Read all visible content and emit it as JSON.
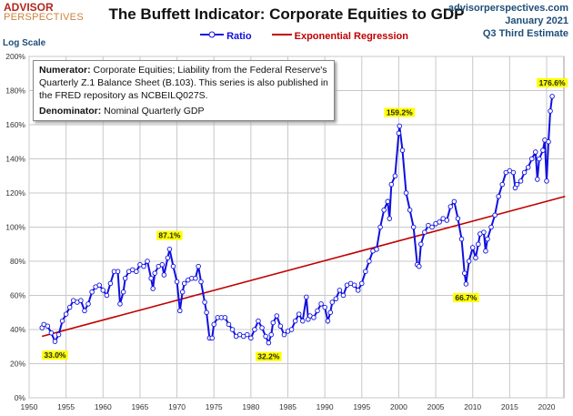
{
  "header": {
    "logo_line1": "ADVISOR",
    "logo_line2": "PERSPECTIVES",
    "site": "advisorperspectives.com",
    "date": "January 2021",
    "estimate": "Q3 Third Estimate"
  },
  "note": {
    "numerator_label": "Numerator:",
    "numerator_text": " Corporate Equities; Liability from the Federal Reserve's Quarterly Z.1 Balance Sheet (B.103). This series is also published in the FRED repository  as NCBEILQ027S.",
    "denominator_label": "Denominator:",
    "denominator_text": " Nominal Quarterly GDP"
  },
  "colors": {
    "ratio": "#1010e0",
    "regression": "#c00000",
    "label_bg": "#ffff00",
    "grid": "#c8c8c8"
  },
  "chart_data": {
    "type": "line",
    "title": "The Buffett Indicator: Corporate Equities to GDP",
    "ylabel": "Log Scale",
    "xlim": [
      1950,
      2022.5
    ],
    "ylim": [
      0,
      200
    ],
    "grid": true,
    "legend_placement": "top-center",
    "x_ticks": [
      "1950",
      "1955",
      "1960",
      "1965",
      "1970",
      "1975",
      "1980",
      "1985",
      "1990",
      "1995",
      "2000",
      "2005",
      "2010",
      "2015",
      "2020"
    ],
    "y_ticks": [
      "0%",
      "20%",
      "40%",
      "60%",
      "80%",
      "100%",
      "120%",
      "140%",
      "160%",
      "180%",
      "200%"
    ],
    "series": [
      {
        "name": "Ratio",
        "points": [
          [
            1951.75,
            41
          ],
          [
            1952,
            43
          ],
          [
            1952.5,
            42
          ],
          [
            1953,
            38
          ],
          [
            1953.5,
            33
          ],
          [
            1954,
            37
          ],
          [
            1954.5,
            45
          ],
          [
            1955,
            49
          ],
          [
            1955.5,
            53
          ],
          [
            1956,
            57
          ],
          [
            1956.5,
            56
          ],
          [
            1957,
            57
          ],
          [
            1957.5,
            51
          ],
          [
            1958,
            55
          ],
          [
            1958.5,
            62
          ],
          [
            1959,
            65
          ],
          [
            1959.5,
            66
          ],
          [
            1960,
            63
          ],
          [
            1960.5,
            60
          ],
          [
            1961,
            67
          ],
          [
            1961.5,
            74
          ],
          [
            1962,
            74
          ],
          [
            1962.3,
            55
          ],
          [
            1962.75,
            62
          ],
          [
            1963,
            70
          ],
          [
            1963.5,
            74
          ],
          [
            1964,
            75
          ],
          [
            1964.5,
            74
          ],
          [
            1965,
            78
          ],
          [
            1965.5,
            77
          ],
          [
            1966,
            80
          ],
          [
            1966.5,
            70
          ],
          [
            1966.75,
            64
          ],
          [
            1967,
            73
          ],
          [
            1967.5,
            77
          ],
          [
            1968,
            78
          ],
          [
            1968.25,
            72
          ],
          [
            1968.75,
            82
          ],
          [
            1969,
            87.1
          ],
          [
            1969.5,
            77
          ],
          [
            1970,
            68
          ],
          [
            1970.4,
            51
          ],
          [
            1970.75,
            62
          ],
          [
            1971,
            67
          ],
          [
            1971.5,
            69
          ],
          [
            1972,
            70
          ],
          [
            1972.5,
            70
          ],
          [
            1972.9,
            77
          ],
          [
            1973.25,
            68
          ],
          [
            1973.75,
            56
          ],
          [
            1974,
            50
          ],
          [
            1974.4,
            35
          ],
          [
            1974.75,
            35
          ],
          [
            1975,
            43
          ],
          [
            1975.5,
            47
          ],
          [
            1976,
            47
          ],
          [
            1976.5,
            47
          ],
          [
            1977,
            43
          ],
          [
            1977.5,
            40
          ],
          [
            1978,
            36
          ],
          [
            1978.5,
            37
          ],
          [
            1979,
            36
          ],
          [
            1979.5,
            37
          ],
          [
            1980,
            35
          ],
          [
            1980.5,
            40
          ],
          [
            1981,
            45
          ],
          [
            1981.5,
            41
          ],
          [
            1982,
            36
          ],
          [
            1982.4,
            32.2
          ],
          [
            1982.75,
            37
          ],
          [
            1983,
            44
          ],
          [
            1983.5,
            48
          ],
          [
            1984,
            42
          ],
          [
            1984.5,
            37
          ],
          [
            1985,
            39
          ],
          [
            1985.5,
            40
          ],
          [
            1986,
            45
          ],
          [
            1986.5,
            49
          ],
          [
            1987,
            45
          ],
          [
            1987.5,
            59
          ],
          [
            1987.75,
            46
          ],
          [
            1988,
            48
          ],
          [
            1988.5,
            47
          ],
          [
            1989,
            51
          ],
          [
            1989.5,
            55
          ],
          [
            1990,
            53
          ],
          [
            1990.4,
            45
          ],
          [
            1990.75,
            50
          ],
          [
            1991,
            56
          ],
          [
            1991.5,
            58
          ],
          [
            1992,
            63
          ],
          [
            1992.5,
            60
          ],
          [
            1993,
            66
          ],
          [
            1993.5,
            67
          ],
          [
            1994,
            66
          ],
          [
            1994.5,
            63
          ],
          [
            1995,
            67
          ],
          [
            1995.5,
            74
          ],
          [
            1996,
            80
          ],
          [
            1996.5,
            86
          ],
          [
            1997,
            87
          ],
          [
            1997.5,
            100
          ],
          [
            1998,
            110
          ],
          [
            1998.5,
            115
          ],
          [
            1998.75,
            105
          ],
          [
            1999,
            125
          ],
          [
            1999.5,
            130
          ],
          [
            2000,
            155
          ],
          [
            2000.1,
            159.2
          ],
          [
            2000.5,
            145
          ],
          [
            2001,
            120
          ],
          [
            2001.5,
            110
          ],
          [
            2002,
            100
          ],
          [
            2002.5,
            78
          ],
          [
            2002.75,
            77
          ],
          [
            2003,
            90
          ],
          [
            2003.5,
            97
          ],
          [
            2004,
            101
          ],
          [
            2004.5,
            100
          ],
          [
            2005,
            102
          ],
          [
            2005.5,
            103
          ],
          [
            2006,
            105
          ],
          [
            2006.5,
            104
          ],
          [
            2007,
            112
          ],
          [
            2007.5,
            115
          ],
          [
            2008,
            105
          ],
          [
            2008.5,
            93
          ],
          [
            2008.9,
            73
          ],
          [
            2009.1,
            66.7
          ],
          [
            2009.5,
            80
          ],
          [
            2010,
            88
          ],
          [
            2010.4,
            82
          ],
          [
            2010.75,
            90
          ],
          [
            2011,
            96
          ],
          [
            2011.5,
            97
          ],
          [
            2011.75,
            86
          ],
          [
            2012,
            93
          ],
          [
            2012.5,
            100
          ],
          [
            2013,
            107
          ],
          [
            2013.5,
            118
          ],
          [
            2014,
            125
          ],
          [
            2014.5,
            132
          ],
          [
            2015,
            133
          ],
          [
            2015.5,
            132
          ],
          [
            2015.75,
            123
          ],
          [
            2016,
            125
          ],
          [
            2016.5,
            127
          ],
          [
            2017,
            132
          ],
          [
            2017.5,
            135
          ],
          [
            2018,
            140
          ],
          [
            2018.5,
            144
          ],
          [
            2018.75,
            128
          ],
          [
            2019,
            140
          ],
          [
            2019.5,
            145
          ],
          [
            2019.75,
            151
          ],
          [
            2020,
            127
          ],
          [
            2020.25,
            150
          ],
          [
            2020.5,
            168
          ],
          [
            2020.75,
            176.6
          ]
        ]
      },
      {
        "name": "Exponential Regression",
        "points": [
          [
            1951.75,
            36
          ],
          [
            2022.5,
            118
          ]
        ]
      }
    ],
    "annotations": [
      {
        "text": "33.0%",
        "x": 1953.5,
        "y": 33,
        "pos": "below"
      },
      {
        "text": "87.1%",
        "x": 1969,
        "y": 87.1,
        "pos": "above"
      },
      {
        "text": "32.2%",
        "x": 1982.4,
        "y": 32.2,
        "pos": "below"
      },
      {
        "text": "159.2%",
        "x": 2000.1,
        "y": 159.2,
        "pos": "above"
      },
      {
        "text": "66.7%",
        "x": 2009.1,
        "y": 66.7,
        "pos": "below"
      },
      {
        "text": "176.6%",
        "x": 2020.75,
        "y": 176.6,
        "pos": "above"
      }
    ]
  }
}
